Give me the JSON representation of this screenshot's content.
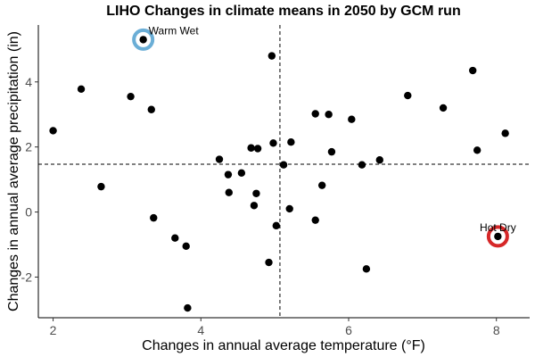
{
  "chart_data": {
    "type": "scatter",
    "title": "LIHO Changes in climate means in 2050 by GCM run",
    "xlabel": "Changes in annual average temperature (°F)",
    "ylabel": "Changes in annual average precipitation (in)",
    "xlim": [
      1.8,
      8.45
    ],
    "ylim": [
      -3.25,
      5.75
    ],
    "xticks": [
      2,
      4,
      6,
      8
    ],
    "yticks": [
      -2,
      0,
      2,
      4
    ],
    "reference_lines": {
      "x": 5.07,
      "y": 1.47
    },
    "grid": false,
    "legend": "none",
    "point_color": "#000000",
    "points": [
      {
        "x": 2.0,
        "y": 2.5
      },
      {
        "x": 2.38,
        "y": 3.78
      },
      {
        "x": 2.65,
        "y": 0.78
      },
      {
        "x": 3.05,
        "y": 3.55
      },
      {
        "x": 3.22,
        "y": 5.3
      },
      {
        "x": 3.33,
        "y": 3.15
      },
      {
        "x": 3.36,
        "y": -0.18
      },
      {
        "x": 3.65,
        "y": -0.8
      },
      {
        "x": 3.8,
        "y": -1.05
      },
      {
        "x": 3.82,
        "y": -2.95
      },
      {
        "x": 4.25,
        "y": 1.62
      },
      {
        "x": 4.37,
        "y": 1.15
      },
      {
        "x": 4.38,
        "y": 0.6
      },
      {
        "x": 4.55,
        "y": 1.2
      },
      {
        "x": 4.68,
        "y": 1.97
      },
      {
        "x": 4.72,
        "y": 0.2
      },
      {
        "x": 4.75,
        "y": 0.57
      },
      {
        "x": 4.77,
        "y": 1.95
      },
      {
        "x": 4.92,
        "y": -1.55
      },
      {
        "x": 4.96,
        "y": 4.8
      },
      {
        "x": 4.98,
        "y": 2.12
      },
      {
        "x": 5.02,
        "y": -0.42
      },
      {
        "x": 5.12,
        "y": 1.45
      },
      {
        "x": 5.2,
        "y": 0.1
      },
      {
        "x": 5.22,
        "y": 2.15
      },
      {
        "x": 5.55,
        "y": 3.02
      },
      {
        "x": 5.55,
        "y": -0.25
      },
      {
        "x": 5.64,
        "y": 0.82
      },
      {
        "x": 5.73,
        "y": 3.0
      },
      {
        "x": 5.77,
        "y": 1.85
      },
      {
        "x": 6.04,
        "y": 2.85
      },
      {
        "x": 6.18,
        "y": 1.45
      },
      {
        "x": 6.24,
        "y": -1.75
      },
      {
        "x": 6.42,
        "y": 1.6
      },
      {
        "x": 6.8,
        "y": 3.58
      },
      {
        "x": 7.28,
        "y": 3.2
      },
      {
        "x": 7.68,
        "y": 4.35
      },
      {
        "x": 7.74,
        "y": 1.9
      },
      {
        "x": 8.02,
        "y": -0.75
      },
      {
        "x": 8.12,
        "y": 2.42
      }
    ],
    "annotations": [
      {
        "label": "Warm Wet",
        "x": 3.22,
        "y": 5.3,
        "ring_color": "#6baed6"
      },
      {
        "label": "Hot Dry",
        "x": 8.02,
        "y": -0.75,
        "ring_color": "#d62728"
      }
    ]
  }
}
